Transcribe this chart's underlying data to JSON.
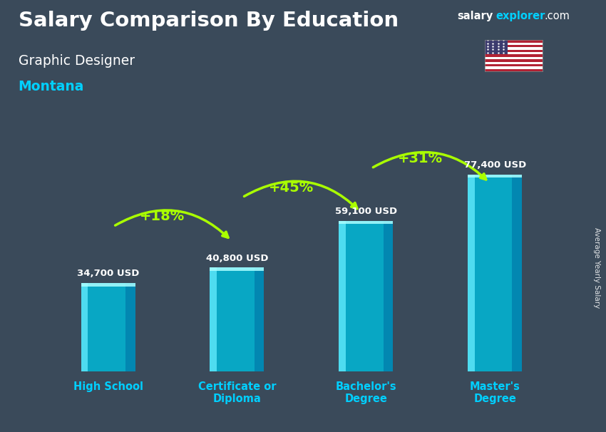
{
  "title_salary": "Salary Comparison By Education",
  "subtitle_job": "Graphic Designer",
  "subtitle_location": "Montana",
  "categories": [
    "High School",
    "Certificate or\nDiploma",
    "Bachelor's\nDegree",
    "Master's\nDegree"
  ],
  "values": [
    34700,
    40800,
    59100,
    77400
  ],
  "value_labels": [
    "34,700 USD",
    "40,800 USD",
    "59,100 USD",
    "77,400 USD"
  ],
  "pct_changes": [
    "+18%",
    "+45%",
    "+31%"
  ],
  "bar_color_mid": "#00c8e8",
  "ylabel": "Average Yearly Salary",
  "bg_color": "#3a4a5a",
  "title_color": "#ffffff",
  "subtitle_job_color": "#ffffff",
  "subtitle_location_color": "#00cfff",
  "pct_color": "#aaff00",
  "x_label_color": "#00cfff",
  "bar_width": 0.42,
  "ylim": [
    0,
    95000
  ],
  "salary_text": "salary",
  "explorer_text": "explorer",
  "dotcom_text": ".com"
}
